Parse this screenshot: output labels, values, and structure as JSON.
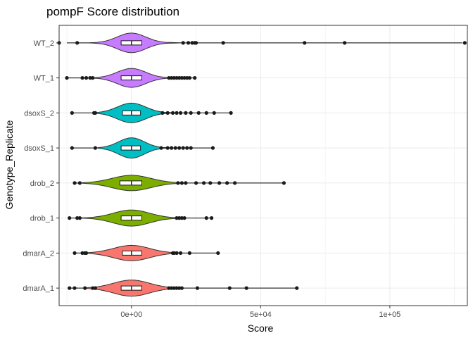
{
  "chart_data": {
    "type": "violin",
    "title": "pompF Score distribution",
    "xlabel": "Score",
    "ylabel": "Genotype_Replicate",
    "xlim": [
      -28000,
      130000
    ],
    "x_ticks": [
      {
        "value": 0,
        "label": "0e+00"
      },
      {
        "value": 50000,
        "label": "5e+04"
      },
      {
        "value": 100000,
        "label": "1e+05"
      }
    ],
    "grid": true,
    "categories": [
      {
        "name": "WT_2",
        "color": "#C77CFF",
        "median": 0,
        "q1": -4000,
        "q3": 4000,
        "whisker_low": -25000,
        "whisker_high": 128000,
        "violin_halfwidth": 0.28,
        "violin_sd": 5500,
        "violin_lo": -16000,
        "violin_hi": 19000,
        "points": [
          -28000,
          -21000,
          20000,
          22000,
          23500,
          24500,
          25000,
          35500,
          67000,
          82500,
          129000
        ]
      },
      {
        "name": "WT_1",
        "color": "#C77CFF",
        "median": 0,
        "q1": -4000,
        "q3": 4000,
        "whisker_low": -25000,
        "whisker_high": 25000,
        "violin_halfwidth": 0.27,
        "violin_sd": 5500,
        "violin_lo": -16000,
        "violin_hi": 16000,
        "points": [
          -25000,
          -19000,
          -17500,
          -16000,
          -15000,
          14500,
          15500,
          16500,
          17500,
          18500,
          19500,
          20500,
          21500,
          22500,
          24500
        ]
      },
      {
        "name": "dsoxS_2",
        "color": "#00BFC4",
        "median": 0,
        "q1": -3500,
        "q3": 3500,
        "whisker_low": -23000,
        "whisker_high": 38000,
        "violin_halfwidth": 0.28,
        "violin_sd": 5500,
        "violin_lo": -14000,
        "violin_hi": 18000,
        "points": [
          -23000,
          -14500,
          -14000,
          12000,
          14000,
          16000,
          17500,
          19000,
          21000,
          23000,
          26000,
          29000,
          32000,
          38500
        ]
      },
      {
        "name": "dsoxS_1",
        "color": "#00BFC4",
        "median": 0,
        "q1": -4000,
        "q3": 3500,
        "whisker_low": -23000,
        "whisker_high": 31000,
        "violin_halfwidth": 0.29,
        "violin_sd": 5000,
        "violin_lo": -13000,
        "violin_hi": 16000,
        "points": [
          -23000,
          -14000,
          11500,
          14000,
          15500,
          17000,
          18500,
          20000,
          21500,
          23000,
          31500
        ]
      },
      {
        "name": "drob_2",
        "color": "#7CAE00",
        "median": 0,
        "q1": -4500,
        "q3": 4000,
        "whisker_low": -22000,
        "whisker_high": 59000,
        "violin_halfwidth": 0.22,
        "violin_sd": 7500,
        "violin_lo": -19000,
        "violin_hi": 21000,
        "points": [
          -22000,
          -20000,
          18000,
          19500,
          21000,
          25000,
          28000,
          30500,
          34000,
          37000,
          40000,
          59000
        ]
      },
      {
        "name": "drob_1",
        "color": "#7CAE00",
        "median": 0,
        "q1": -4000,
        "q3": 4000,
        "whisker_low": -24000,
        "whisker_high": 31000,
        "violin_halfwidth": 0.23,
        "violin_sd": 7000,
        "violin_lo": -20000,
        "violin_hi": 19000,
        "points": [
          -24000,
          -21000,
          -20000,
          17500,
          18500,
          19500,
          20500,
          29000,
          31000
        ]
      },
      {
        "name": "dmarA_2",
        "color": "#F8766D",
        "median": 0,
        "q1": -3500,
        "q3": 4000,
        "whisker_low": -22000,
        "whisker_high": 33000,
        "violin_halfwidth": 0.22,
        "violin_sd": 7000,
        "violin_lo": -18000,
        "violin_hi": 19000,
        "points": [
          -22000,
          -19000,
          -18000,
          -17500,
          16000,
          16500,
          17500,
          19000,
          22500,
          33500
        ]
      },
      {
        "name": "dmarA_1",
        "color": "#F8766D",
        "median": 0,
        "q1": -4000,
        "q3": 4000,
        "whisker_low": -24000,
        "whisker_high": 64000,
        "violin_halfwidth": 0.23,
        "violin_sd": 7000,
        "violin_lo": -18000,
        "violin_hi": 18000,
        "points": [
          -24000,
          -22000,
          -18000,
          -15000,
          -14000,
          14500,
          15500,
          16500,
          17500,
          18500,
          19500,
          25500,
          38000,
          44500,
          64000
        ]
      }
    ]
  }
}
